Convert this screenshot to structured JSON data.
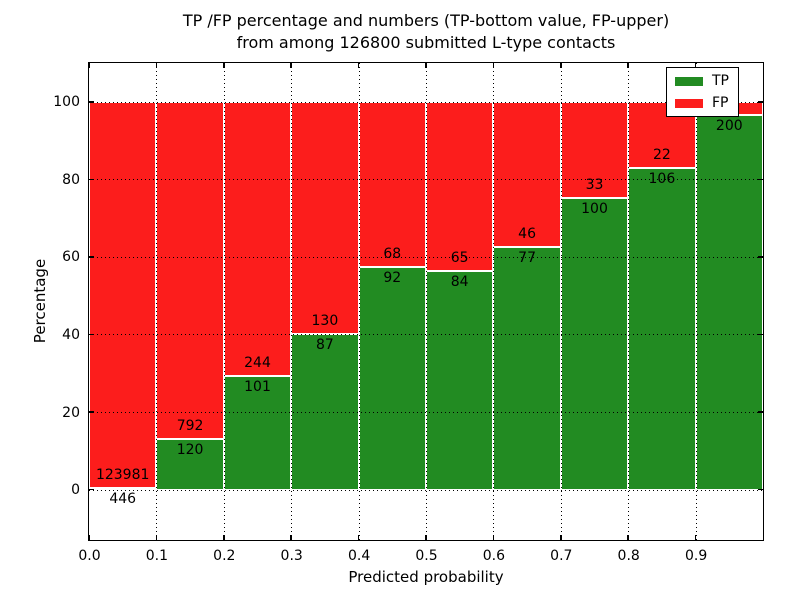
{
  "title": {
    "line1": "TP /FP percentage and numbers (TP-bottom value, FP-upper)",
    "line2": "from among 126800 submitted L-type contacts"
  },
  "axes": {
    "xlabel": "Predicted probability",
    "ylabel": "Percentage",
    "x_tick_labels": [
      "0.0",
      "0.1",
      "0.2",
      "0.3",
      "0.4",
      "0.5",
      "0.6",
      "0.7",
      "0.8",
      "0.9"
    ],
    "y_ticks": [
      0,
      20,
      40,
      60,
      80,
      100
    ],
    "xlim": [
      0.0,
      1.0
    ],
    "ylim": [
      -13,
      110
    ],
    "grid": true,
    "grid_style": "dotted"
  },
  "colors": {
    "tp_green": "#228b22",
    "fp_red": "#fc1d1c",
    "grid": "#000000",
    "background": "#ffffff"
  },
  "legend": {
    "position": "upper right",
    "items": [
      {
        "label": "TP",
        "color": "#228b22"
      },
      {
        "label": "FP",
        "color": "#fc1d1c"
      }
    ]
  },
  "chart_data": {
    "type": "bar",
    "stacked": true,
    "total_contacts": 126800,
    "note_visible_in_title": "TP-bottom value, FP-upper",
    "bins": [
      {
        "x0": 0.0,
        "x1": 0.1,
        "tp_count": 446,
        "fp_count": 123981,
        "tp_pct": 0.36,
        "tp_label": "446",
        "fp_label": "123981"
      },
      {
        "x0": 0.1,
        "x1": 0.2,
        "tp_count": 120,
        "fp_count": 792,
        "tp_pct": 13.16,
        "tp_label": "120",
        "fp_label": "792"
      },
      {
        "x0": 0.2,
        "x1": 0.3,
        "tp_count": 101,
        "fp_count": 244,
        "tp_pct": 29.28,
        "tp_label": "101",
        "fp_label": "244"
      },
      {
        "x0": 0.3,
        "x1": 0.4,
        "tp_count": 87,
        "fp_count": 130,
        "tp_pct": 40.09,
        "tp_label": "87",
        "fp_label": "130"
      },
      {
        "x0": 0.4,
        "x1": 0.5,
        "tp_count": 92,
        "fp_count": 68,
        "tp_pct": 57.5,
        "tp_label": "92",
        "fp_label": "68"
      },
      {
        "x0": 0.5,
        "x1": 0.6,
        "tp_count": 84,
        "fp_count": 65,
        "tp_pct": 56.38,
        "tp_label": "84",
        "fp_label": "65"
      },
      {
        "x0": 0.6,
        "x1": 0.7,
        "tp_count": 77,
        "fp_count": 46,
        "tp_pct": 62.6,
        "tp_label": "77",
        "fp_label": "46"
      },
      {
        "x0": 0.7,
        "x1": 0.8,
        "tp_count": 100,
        "fp_count": 33,
        "tp_pct": 75.19,
        "tp_label": "100",
        "fp_label": "33"
      },
      {
        "x0": 0.8,
        "x1": 0.9,
        "tp_count": 106,
        "fp_count": 22,
        "tp_pct": 82.81,
        "tp_label": "106",
        "fp_label": "22"
      },
      {
        "x0": 0.9,
        "x1": 1.0,
        "tp_count": 200,
        "fp_count": null,
        "tp_pct": 96.6,
        "tp_label": "200",
        "fp_label": ""
      }
    ]
  }
}
